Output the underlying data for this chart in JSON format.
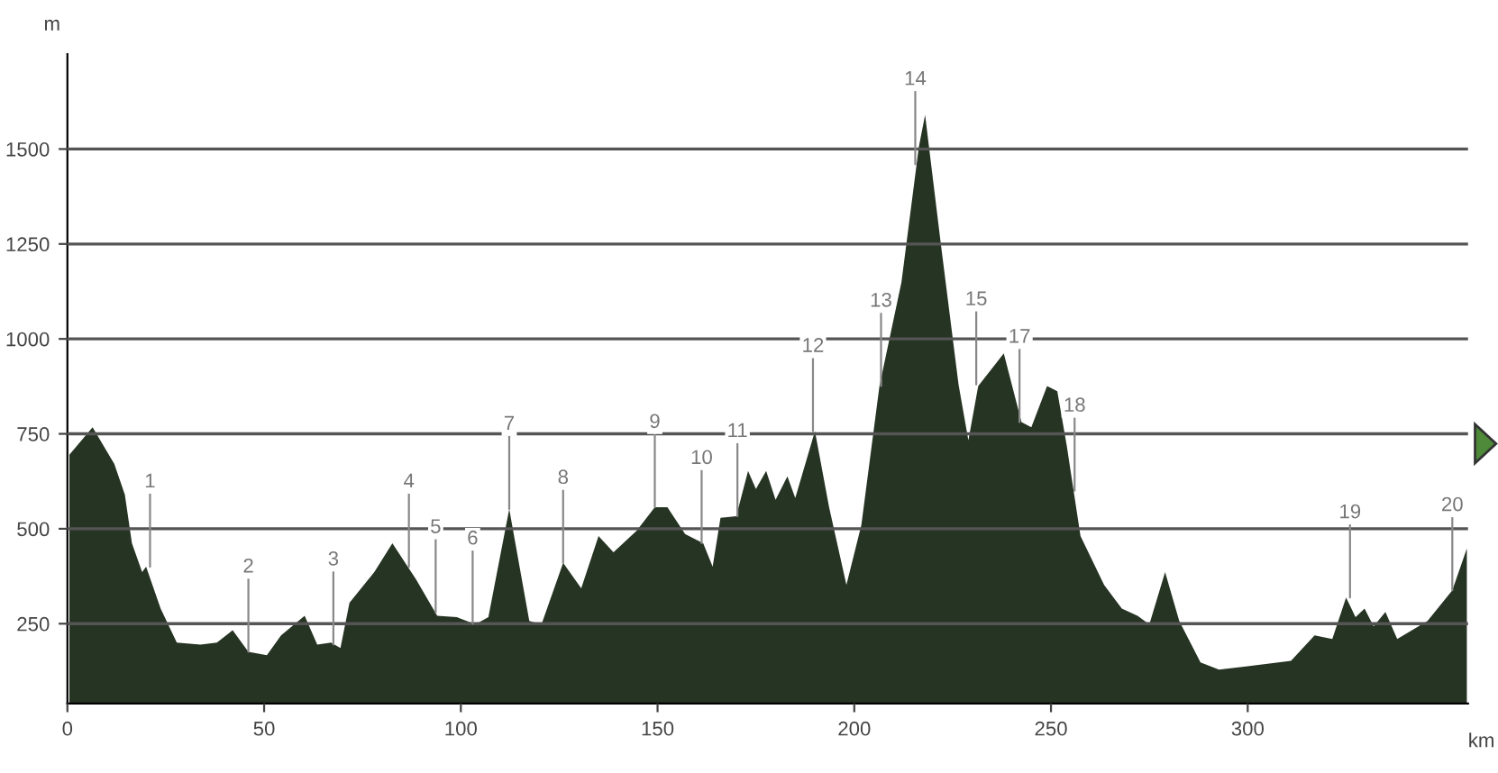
{
  "chart_data": {
    "type": "area",
    "xlabel": "km",
    "ylabel": "m",
    "x": [
      0.5,
      6.4,
      11.9,
      14.6,
      16.4,
      19,
      20,
      23.7,
      27.8,
      33.8,
      38,
      42,
      46,
      50.7,
      54.3,
      60.3,
      63.5,
      67,
      69.4,
      71.7,
      78,
      82.6,
      88.6,
      94,
      99,
      103.7,
      107,
      112.3,
      117.4,
      120.5,
      126,
      130.6,
      135,
      138.8,
      144.7,
      149.3,
      152.5,
      157,
      161.6,
      164,
      166,
      170,
      173,
      175,
      177.6,
      180,
      183,
      185,
      190,
      193.6,
      198,
      201.8,
      206.4,
      212,
      216.4,
      218,
      222,
      226.5,
      229,
      231.5,
      238,
      242.5,
      245,
      249,
      251.6,
      254,
      257.5,
      263.5,
      268,
      272,
      275,
      279,
      282.6,
      288,
      292.7,
      300,
      311,
      317,
      321.5,
      325,
      327.4,
      329.7,
      332,
      335,
      338,
      345.7,
      352,
      355.7
    ],
    "series": [
      {
        "color": "#263423",
        "values": [
          695,
          767,
          671,
          590,
          462,
          386,
          400,
          290,
          200,
          195,
          200,
          233,
          176,
          167,
          219,
          271,
          195,
          200,
          186,
          305,
          386,
          462,
          367,
          271,
          267,
          248,
          267,
          552,
          257,
          248,
          410,
          343,
          481,
          438,
          495,
          557,
          557,
          486,
          462,
          400,
          529,
          533,
          652,
          605,
          652,
          576,
          638,
          581,
          757,
          557,
          352,
          510,
          876,
          1150,
          1505,
          1590,
          1250,
          880,
          733,
          876,
          962,
          781,
          767,
          876,
          862,
          719,
          481,
          352,
          290,
          271,
          248,
          386,
          257,
          148,
          129,
          138,
          152,
          219,
          210,
          319,
          267,
          290,
          243,
          281,
          210,
          257,
          338,
          448
        ]
      }
    ],
    "xlim": [
      0,
      356
    ],
    "ylim": [
      40,
      1750
    ],
    "xticks": [
      0,
      50,
      100,
      150,
      200,
      250,
      300
    ],
    "yticks": [
      250,
      500,
      750,
      1000,
      1250,
      1500
    ],
    "grid": "y",
    "annotations": [
      {
        "text": "1",
        "x": 21,
        "y": 400
      },
      {
        "text": "2",
        "x": 46,
        "y": 176
      },
      {
        "text": "3",
        "x": 67.6,
        "y": 195
      },
      {
        "text": "4",
        "x": 86.8,
        "y": 400
      },
      {
        "text": "5",
        "x": 93.6,
        "y": 280
      },
      {
        "text": "6",
        "x": 103,
        "y": 250
      },
      {
        "text": "7",
        "x": 112.3,
        "y": 552
      },
      {
        "text": "8",
        "x": 126,
        "y": 410
      },
      {
        "text": "9",
        "x": 149.3,
        "y": 557
      },
      {
        "text": "10",
        "x": 161.2,
        "y": 462
      },
      {
        "text": "11",
        "x": 170.3,
        "y": 533
      },
      {
        "text": "12",
        "x": 189.5,
        "y": 757
      },
      {
        "text": "13",
        "x": 206.8,
        "y": 876
      },
      {
        "text": "14",
        "x": 215.5,
        "y": 1460
      },
      {
        "text": "15",
        "x": 231,
        "y": 880
      },
      {
        "text": "17",
        "x": 242,
        "y": 781
      },
      {
        "text": "18",
        "x": 256,
        "y": 600
      },
      {
        "text": "19",
        "x": 326,
        "y": 319
      },
      {
        "text": "20",
        "x": 352,
        "y": 338
      }
    ]
  }
}
